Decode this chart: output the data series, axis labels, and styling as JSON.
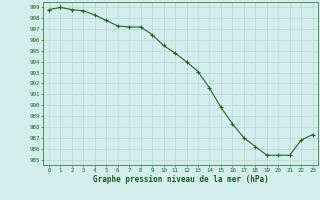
{
  "x": [
    0,
    1,
    2,
    3,
    4,
    5,
    6,
    7,
    8,
    9,
    10,
    11,
    12,
    13,
    14,
    15,
    16,
    17,
    18,
    19,
    20,
    21,
    22,
    23
  ],
  "y": [
    998.8,
    999.0,
    998.8,
    998.7,
    998.3,
    997.8,
    997.3,
    997.2,
    997.2,
    996.5,
    995.5,
    994.8,
    994.0,
    993.1,
    991.6,
    989.8,
    988.3,
    987.0,
    986.2,
    985.4,
    985.4,
    985.4,
    986.8,
    987.3
  ],
  "bg_color": "#d4eeee",
  "grid_color": "#b8d8d8",
  "line_color": "#1a6e1a",
  "marker_color": "#1a6e1a",
  "xlabel": "Graphe pression niveau de la mer (hPa)",
  "xlabel_color": "#1a5e1a",
  "ylabel_ticks": [
    985,
    986,
    987,
    988,
    989,
    990,
    991,
    992,
    993,
    994,
    995,
    996,
    997,
    998,
    999
  ],
  "ylim": [
    984.5,
    999.5
  ],
  "xlim": [
    -0.5,
    23.5
  ],
  "tick_color": "#1a6e1a",
  "tick_label_color": "#1a6e1a"
}
